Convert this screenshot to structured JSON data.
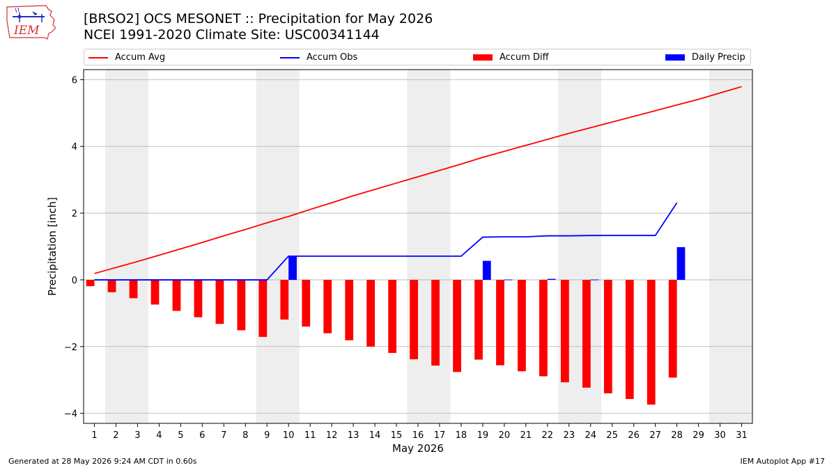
{
  "header": {
    "title_line1": "[BRSO2] OCS MESONET :: Precipitation for May 2026",
    "title_line2": "NCEI 1991-2020 Climate Site: USC00341144"
  },
  "logo": {
    "text": "IEM"
  },
  "footer": {
    "left": "Generated at 28 May 2026 9:24 AM CDT in 0.60s",
    "right": "IEM Autoplot App #17"
  },
  "colors": {
    "avg": "#ff0000",
    "obs": "#0000ff",
    "diff": "#ff0000",
    "daily": "#0000ff",
    "weekend": "#eeeeee",
    "grid": "#b0b0b0"
  },
  "chart_data": {
    "type": "bar",
    "xlabel": "May 2026",
    "ylabel": "Precipitation [inch]",
    "xlim": [
      0.5,
      31.5
    ],
    "ylim": [
      -4.3,
      6.3
    ],
    "yticks": [
      -4,
      -2,
      0,
      2,
      4,
      6
    ],
    "x": [
      1,
      2,
      3,
      4,
      5,
      6,
      7,
      8,
      9,
      10,
      11,
      12,
      13,
      14,
      15,
      16,
      17,
      18,
      19,
      20,
      21,
      22,
      23,
      24,
      25,
      26,
      27,
      28,
      29,
      30,
      31
    ],
    "weekend_bands": [
      [
        1.5,
        3.5
      ],
      [
        8.5,
        10.5
      ],
      [
        15.5,
        17.5
      ],
      [
        22.5,
        24.5
      ],
      [
        29.5,
        31.5
      ]
    ],
    "grid": true,
    "legend_placement": "top",
    "legend": [
      "Accum Avg",
      "Accum Obs",
      "Accum Diff",
      "Daily Precip"
    ],
    "series": [
      {
        "name": "Accum Avg",
        "type": "line",
        "x": [
          1,
          2,
          3,
          4,
          5,
          6,
          7,
          8,
          9,
          10,
          11,
          12,
          13,
          14,
          15,
          16,
          17,
          18,
          19,
          20,
          21,
          22,
          23,
          24,
          25,
          26,
          27,
          28,
          29,
          30,
          31
        ],
        "values": [
          0.19,
          0.37,
          0.55,
          0.74,
          0.93,
          1.12,
          1.32,
          1.51,
          1.71,
          1.9,
          2.11,
          2.31,
          2.52,
          2.71,
          2.9,
          3.09,
          3.28,
          3.47,
          3.67,
          3.85,
          4.03,
          4.21,
          4.39,
          4.56,
          4.73,
          4.9,
          5.07,
          5.24,
          5.41,
          5.6,
          5.79
        ]
      },
      {
        "name": "Accum Obs",
        "type": "line",
        "x": [
          1,
          2,
          3,
          4,
          5,
          6,
          7,
          8,
          9,
          10,
          11,
          12,
          13,
          14,
          15,
          16,
          17,
          18,
          19,
          20,
          21,
          22,
          23,
          24,
          25,
          26,
          27,
          28
        ],
        "values": [
          0,
          0,
          0,
          0,
          0,
          0,
          0,
          0,
          0,
          0.71,
          0.71,
          0.71,
          0.71,
          0.71,
          0.71,
          0.71,
          0.71,
          0.71,
          1.28,
          1.29,
          1.29,
          1.32,
          1.32,
          1.33,
          1.33,
          1.33,
          1.33,
          2.31
        ]
      },
      {
        "name": "Accum Diff",
        "type": "bar",
        "x": [
          1,
          2,
          3,
          4,
          5,
          6,
          7,
          8,
          9,
          10,
          11,
          12,
          13,
          14,
          15,
          16,
          17,
          18,
          19,
          20,
          21,
          22,
          23,
          24,
          25,
          26,
          27,
          28
        ],
        "values": [
          -0.19,
          -0.37,
          -0.55,
          -0.74,
          -0.93,
          -1.12,
          -1.32,
          -1.51,
          -1.71,
          -1.19,
          -1.4,
          -1.6,
          -1.81,
          -2.0,
          -2.19,
          -2.38,
          -2.57,
          -2.76,
          -2.39,
          -2.56,
          -2.74,
          -2.89,
          -3.07,
          -3.23,
          -3.4,
          -3.57,
          -3.74,
          -2.93
        ]
      },
      {
        "name": "Daily Precip",
        "type": "bar",
        "x": [
          1,
          2,
          3,
          4,
          5,
          6,
          7,
          8,
          9,
          10,
          11,
          12,
          13,
          14,
          15,
          16,
          17,
          18,
          19,
          20,
          21,
          22,
          23,
          24,
          25,
          26,
          27,
          28
        ],
        "values": [
          0,
          0,
          0,
          0,
          0,
          0,
          0,
          0,
          0,
          0.71,
          0,
          0,
          0,
          0,
          0,
          0,
          0,
          0,
          0.57,
          0.01,
          0,
          0.03,
          0,
          0.01,
          0,
          0,
          0,
          0.98
        ]
      }
    ]
  }
}
